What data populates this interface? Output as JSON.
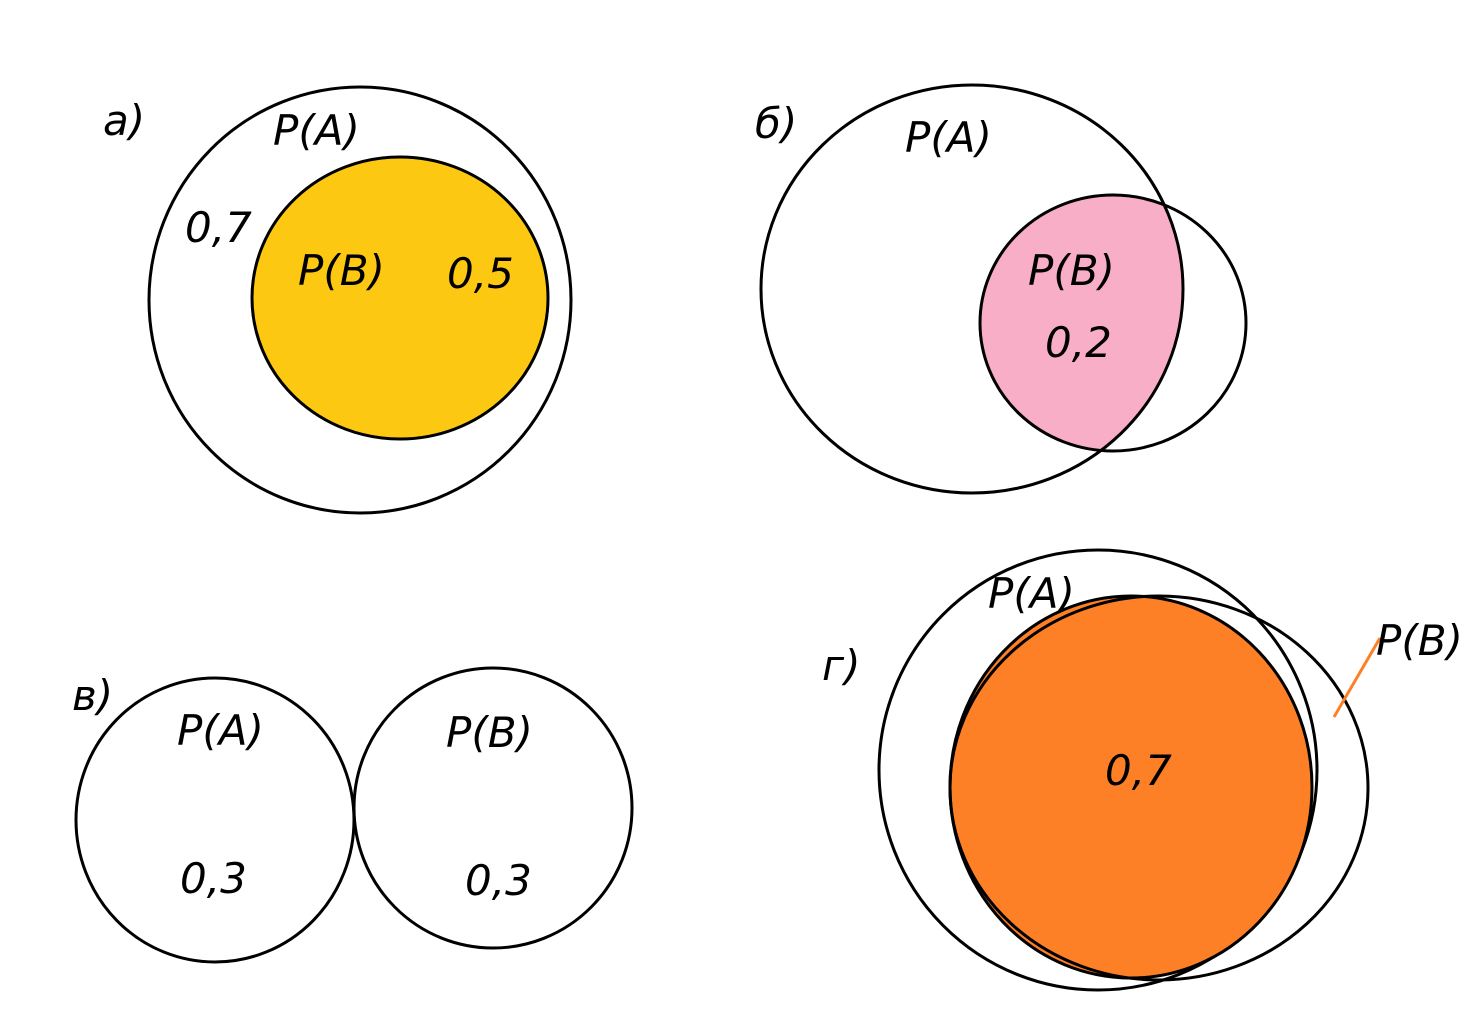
{
  "panels": [
    {
      "label": "а)",
      "texts": [
        "P(A)",
        "0,7",
        "P(B)",
        "0,5"
      ]
    },
    {
      "label": "б)",
      "texts": [
        "P(A)",
        "P(B)",
        "0,2"
      ]
    },
    {
      "label": "в)",
      "texts": [
        "P(A)",
        "0,3",
        "P(B)",
        "0,3"
      ]
    },
    {
      "label": "г)",
      "texts": [
        "P(A)",
        "P(B)",
        "0,7"
      ]
    }
  ]
}
